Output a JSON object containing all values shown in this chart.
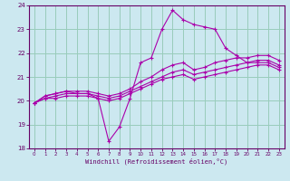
{
  "xlabel": "Windchill (Refroidissement éolien,°C)",
  "background_color": "#cce8f0",
  "line_color": "#aa00aa",
  "grid_color": "#99ccbb",
  "x_values": [
    0,
    1,
    2,
    3,
    4,
    5,
    6,
    7,
    8,
    9,
    10,
    11,
    12,
    13,
    14,
    15,
    16,
    17,
    18,
    19,
    20,
    21,
    22,
    23
  ],
  "line1": [
    19.9,
    20.2,
    20.3,
    20.4,
    20.3,
    20.3,
    20.1,
    18.3,
    18.9,
    20.1,
    21.6,
    21.8,
    23.0,
    23.8,
    23.4,
    23.2,
    23.1,
    23.0,
    22.2,
    21.9,
    21.6,
    21.7,
    21.7,
    21.5
  ],
  "line2": [
    19.9,
    20.2,
    20.3,
    20.4,
    20.4,
    20.4,
    20.3,
    20.2,
    20.3,
    20.5,
    20.8,
    21.0,
    21.3,
    21.5,
    21.6,
    21.3,
    21.4,
    21.6,
    21.7,
    21.8,
    21.8,
    21.9,
    21.9,
    21.7
  ],
  "line3": [
    19.9,
    20.1,
    20.2,
    20.3,
    20.3,
    20.3,
    20.2,
    20.1,
    20.2,
    20.4,
    20.6,
    20.8,
    21.0,
    21.2,
    21.3,
    21.1,
    21.2,
    21.3,
    21.4,
    21.5,
    21.6,
    21.6,
    21.6,
    21.4
  ],
  "line4": [
    19.9,
    20.1,
    20.1,
    20.2,
    20.2,
    20.2,
    20.1,
    20.0,
    20.1,
    20.3,
    20.5,
    20.7,
    20.9,
    21.0,
    21.1,
    20.9,
    21.0,
    21.1,
    21.2,
    21.3,
    21.4,
    21.5,
    21.5,
    21.3
  ],
  "ylim": [
    18,
    24
  ],
  "xlim": [
    -0.5,
    23.5
  ],
  "yticks": [
    18,
    19,
    20,
    21,
    22,
    23,
    24
  ],
  "xticks": [
    0,
    1,
    2,
    3,
    4,
    5,
    6,
    7,
    8,
    9,
    10,
    11,
    12,
    13,
    14,
    15,
    16,
    17,
    18,
    19,
    20,
    21,
    22,
    23
  ],
  "xlabel_color": "#660066",
  "tick_label_color": "#660066",
  "spine_color": "#660066"
}
